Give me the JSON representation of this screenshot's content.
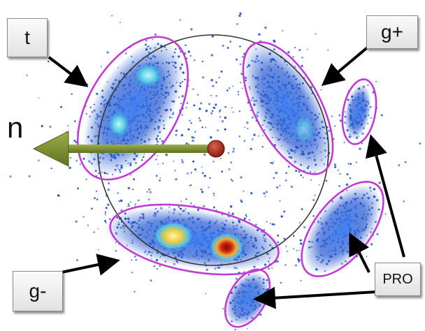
{
  "labels": {
    "t": "t",
    "g_plus": "g+",
    "g_minus": "g-",
    "pro": "PRO",
    "n": "n"
  },
  "colors": {
    "scatter": "#1f4fc4",
    "ellipse_outline": "#c23ad6",
    "circle_outline": "#333333",
    "vector_arrow": "#7a8f2e",
    "origin_point": "#a02818",
    "density_high": "#d42a0a",
    "density_mid": "#f2d23a",
    "density_low": "#5ad8e6"
  }
}
